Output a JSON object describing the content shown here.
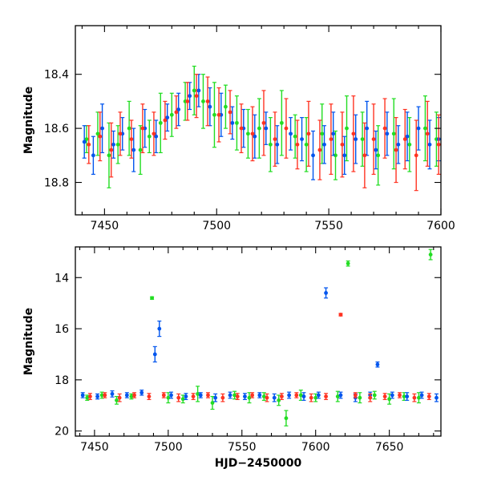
{
  "chart_data": [
    {
      "type": "scatter",
      "panel": "top",
      "title": "",
      "xlabel": "",
      "ylabel": "Magnitude",
      "xlim": [
        7437,
        7600
      ],
      "ylim": [
        18.92,
        18.22
      ],
      "y_inverted": true,
      "grid": false,
      "error_bars": true,
      "xticks": [
        7450,
        7500,
        7550,
        7600
      ],
      "xtick_labels": [
        "7450",
        "7500",
        "7550",
        "7600"
      ],
      "yticks": [
        18.4,
        18.6,
        18.8
      ],
      "ytick_labels": [
        "18.4",
        "18.6",
        "18.8"
      ],
      "series": [
        {
          "color": "#22dd22",
          "x": [
            7442,
            7447,
            7452,
            7456,
            7461,
            7466,
            7470,
            7475,
            7480,
            7486,
            7490,
            7494,
            7499,
            7504,
            7509,
            7514,
            7519,
            7524,
            7529,
            7535,
            7540,
            7547,
            7553,
            7558,
            7565,
            7572,
            7579,
            7586,
            7593,
            7598
          ],
          "y": [
            18.64,
            18.62,
            18.7,
            18.66,
            18.6,
            18.68,
            18.63,
            18.58,
            18.55,
            18.5,
            18.46,
            18.5,
            18.55,
            18.52,
            18.58,
            18.62,
            18.6,
            18.66,
            18.58,
            18.63,
            18.66,
            18.62,
            18.7,
            18.6,
            18.64,
            18.7,
            18.62,
            18.66,
            18.6,
            18.64
          ],
          "err": [
            0.05,
            0.08,
            0.12,
            0.07,
            0.1,
            0.09,
            0.06,
            0.11,
            0.08,
            0.07,
            0.09,
            0.1,
            0.12,
            0.08,
            0.1,
            0.09,
            0.11,
            0.1,
            0.12,
            0.08,
            0.1,
            0.11,
            0.09,
            0.12,
            0.1,
            0.11,
            0.13,
            0.1,
            0.12,
            0.1
          ]
        },
        {
          "color": "#0055ee",
          "x": [
            7441,
            7445,
            7449,
            7454,
            7458,
            7463,
            7468,
            7473,
            7478,
            7483,
            7488,
            7492,
            7497,
            7502,
            7507,
            7512,
            7517,
            7522,
            7527,
            7533,
            7538,
            7543,
            7548,
            7552,
            7557,
            7562,
            7567,
            7571,
            7576,
            7581,
            7585,
            7590,
            7595,
            7599
          ],
          "y": [
            18.65,
            18.7,
            18.6,
            18.66,
            18.62,
            18.68,
            18.6,
            18.63,
            18.56,
            18.53,
            18.48,
            18.46,
            18.52,
            18.55,
            18.58,
            18.6,
            18.63,
            18.6,
            18.66,
            18.62,
            18.64,
            18.7,
            18.66,
            18.62,
            18.7,
            18.64,
            18.6,
            18.68,
            18.62,
            18.66,
            18.63,
            18.6,
            18.66,
            18.64
          ],
          "err": [
            0.06,
            0.07,
            0.09,
            0.05,
            0.06,
            0.08,
            0.07,
            0.06,
            0.05,
            0.06,
            0.05,
            0.06,
            0.07,
            0.08,
            0.06,
            0.07,
            0.08,
            0.06,
            0.07,
            0.06,
            0.08,
            0.09,
            0.07,
            0.08,
            0.07,
            0.09,
            0.1,
            0.07,
            0.08,
            0.07,
            0.09,
            0.08,
            0.09,
            0.08
          ]
        },
        {
          "color": "#ff3322",
          "x": [
            7443,
            7448,
            7453,
            7457,
            7462,
            7467,
            7472,
            7477,
            7482,
            7487,
            7491,
            7496,
            7501,
            7506,
            7511,
            7516,
            7521,
            7526,
            7531,
            7536,
            7541,
            7546,
            7551,
            7556,
            7561,
            7566,
            7570,
            7575,
            7580,
            7584,
            7589,
            7594,
            7599
          ],
          "y": [
            18.66,
            18.63,
            18.68,
            18.62,
            18.64,
            18.6,
            18.62,
            18.57,
            18.54,
            18.5,
            18.48,
            18.5,
            18.55,
            18.54,
            18.6,
            18.62,
            18.58,
            18.64,
            18.6,
            18.66,
            18.62,
            18.68,
            18.64,
            18.66,
            18.62,
            18.7,
            18.64,
            18.6,
            18.68,
            18.64,
            18.7,
            18.62,
            18.66
          ],
          "err": [
            0.07,
            0.09,
            0.1,
            0.08,
            0.07,
            0.09,
            0.08,
            0.07,
            0.06,
            0.07,
            0.08,
            0.09,
            0.1,
            0.08,
            0.09,
            0.1,
            0.12,
            0.1,
            0.11,
            0.09,
            0.12,
            0.11,
            0.13,
            0.12,
            0.14,
            0.12,
            0.13,
            0.11,
            0.12,
            0.11,
            0.13,
            0.12,
            0.11
          ]
        }
      ]
    },
    {
      "type": "scatter",
      "panel": "bottom",
      "title": "",
      "xlabel": "HJD−2450000",
      "ylabel": "Magnitude",
      "xlim": [
        7437,
        7685
      ],
      "ylim": [
        20.2,
        12.8
      ],
      "y_inverted": true,
      "grid": false,
      "error_bars": true,
      "xticks": [
        7450,
        7500,
        7550,
        7600,
        7650
      ],
      "xtick_labels": [
        "7450",
        "7500",
        "7550",
        "7600",
        "7650"
      ],
      "yticks": [
        14,
        16,
        18,
        20
      ],
      "ytick_labels": [
        "14",
        "16",
        "18",
        "20"
      ],
      "series": [
        {
          "color": "#22dd22",
          "x": [
            7445,
            7455,
            7465,
            7475,
            7489,
            7500,
            7510,
            7520,
            7530,
            7545,
            7555,
            7565,
            7575,
            7580,
            7590,
            7600,
            7615,
            7622,
            7630,
            7640,
            7650,
            7660,
            7670,
            7678
          ],
          "y": [
            18.7,
            18.6,
            18.8,
            18.65,
            14.8,
            18.7,
            18.75,
            18.55,
            18.9,
            18.6,
            18.7,
            18.65,
            18.8,
            19.5,
            18.6,
            18.7,
            18.65,
            13.45,
            18.7,
            18.6,
            18.75,
            18.65,
            18.7,
            13.1
          ],
          "err": [
            0.1,
            0.12,
            0.15,
            0.1,
            0.05,
            0.2,
            0.15,
            0.3,
            0.25,
            0.15,
            0.2,
            0.15,
            0.2,
            0.3,
            0.2,
            0.15,
            0.2,
            0.1,
            0.2,
            0.15,
            0.2,
            0.15,
            0.2,
            0.2
          ]
        },
        {
          "color": "#0055ee",
          "x": [
            7442,
            7452,
            7462,
            7472,
            7482,
            7491,
            7494,
            7502,
            7512,
            7522,
            7532,
            7542,
            7552,
            7562,
            7572,
            7582,
            7592,
            7602,
            7607,
            7617,
            7627,
            7637,
            7642,
            7652,
            7662,
            7672,
            7682
          ],
          "y": [
            18.6,
            18.65,
            18.55,
            18.6,
            18.5,
            17.0,
            16.0,
            18.6,
            18.65,
            18.6,
            18.7,
            18.6,
            18.65,
            18.6,
            18.7,
            18.6,
            18.65,
            18.6,
            14.6,
            18.6,
            18.7,
            18.6,
            17.4,
            18.6,
            18.65,
            18.6,
            18.7
          ],
          "err": [
            0.1,
            0.1,
            0.12,
            0.1,
            0.1,
            0.3,
            0.3,
            0.12,
            0.12,
            0.1,
            0.15,
            0.12,
            0.12,
            0.1,
            0.15,
            0.12,
            0.15,
            0.12,
            0.2,
            0.12,
            0.15,
            0.12,
            0.1,
            0.12,
            0.15,
            0.12,
            0.15
          ]
        },
        {
          "color": "#ff3322",
          "x": [
            7447,
            7457,
            7467,
            7477,
            7487,
            7497,
            7507,
            7517,
            7527,
            7537,
            7547,
            7557,
            7567,
            7577,
            7587,
            7597,
            7607,
            7617,
            7627,
            7637,
            7647,
            7657,
            7667,
            7677
          ],
          "y": [
            18.65,
            18.6,
            18.7,
            18.6,
            18.65,
            18.6,
            18.7,
            18.65,
            18.6,
            18.7,
            18.65,
            18.6,
            18.7,
            18.65,
            18.6,
            18.7,
            18.65,
            15.45,
            18.6,
            18.7,
            18.65,
            18.6,
            18.7,
            18.65
          ],
          "err": [
            0.12,
            0.1,
            0.15,
            0.1,
            0.12,
            0.1,
            0.15,
            0.12,
            0.1,
            0.15,
            0.12,
            0.1,
            0.15,
            0.12,
            0.1,
            0.15,
            0.12,
            0.05,
            0.1,
            0.15,
            0.12,
            0.1,
            0.15,
            0.12
          ]
        }
      ]
    }
  ]
}
